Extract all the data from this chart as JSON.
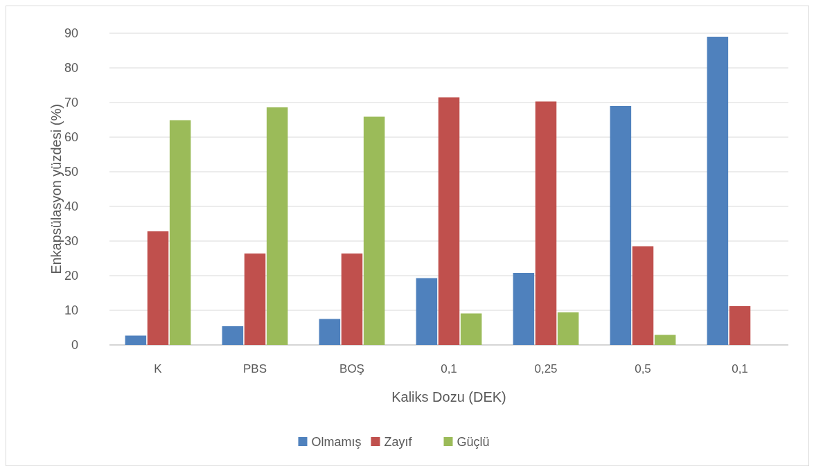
{
  "chart_data": {
    "type": "bar",
    "xlabel": "Kaliks Dozu (DEK)",
    "ylabel": "Enkapsülasyon yüzdesi (%)",
    "categories": [
      "K",
      "PBS",
      "BOŞ",
      "0,1",
      "0,25",
      "0,5",
      "0,1"
    ],
    "series": [
      {
        "name": "Olmamış",
        "color": "#4f81bd",
        "values": [
          2.7,
          5.4,
          7.5,
          19.3,
          20.8,
          69,
          89
        ]
      },
      {
        "name": "Zayıf",
        "color": "#c0504d",
        "values": [
          32.8,
          26.4,
          26.4,
          71.5,
          70.3,
          28.5,
          11.2
        ]
      },
      {
        "name": "Güçlü",
        "color": "#9bbb59",
        "values": [
          64.9,
          68.6,
          65.9,
          9.1,
          9.4,
          2.9,
          0
        ]
      }
    ],
    "ylim": [
      0,
      90
    ],
    "yticks": [
      0,
      10,
      20,
      30,
      40,
      50,
      60,
      70,
      80,
      90
    ],
    "grid": "y",
    "legend": "bottom"
  }
}
